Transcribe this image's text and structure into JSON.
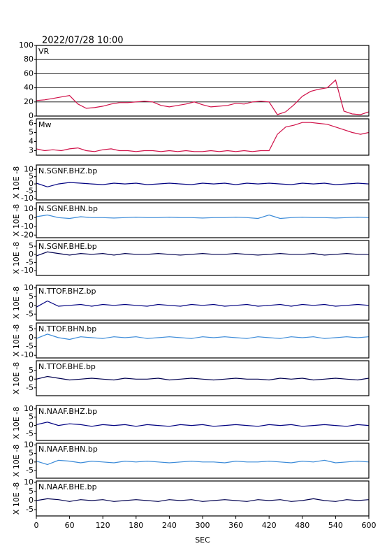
{
  "title": "2022/07/28 10:00",
  "chart_data": [
    {
      "type": "line",
      "label": "VR",
      "color": "#d01048",
      "grid": true,
      "xlim": [
        0,
        600
      ],
      "ylim": [
        0,
        100
      ],
      "yticks": [
        0,
        20,
        40,
        60,
        80,
        100
      ],
      "x": [
        0,
        15,
        30,
        45,
        60,
        75,
        90,
        105,
        120,
        135,
        150,
        165,
        180,
        195,
        210,
        225,
        240,
        255,
        270,
        285,
        300,
        315,
        330,
        345,
        360,
        375,
        390,
        405,
        420,
        435,
        450,
        465,
        480,
        495,
        510,
        525,
        540,
        555,
        570,
        585,
        600
      ],
      "values": [
        22,
        23,
        25,
        27,
        29,
        17,
        11,
        12,
        14,
        17,
        19,
        19,
        20,
        21,
        20,
        15,
        13,
        15,
        17,
        20,
        16,
        13,
        14,
        15,
        18,
        17,
        20,
        21,
        20,
        2,
        6,
        16,
        28,
        35,
        38,
        40,
        51,
        7,
        3,
        2,
        6
      ]
    },
    {
      "type": "line",
      "label": "Mw",
      "color": "#d01048",
      "grid": false,
      "xlim": [
        0,
        600
      ],
      "ylim": [
        2.5,
        6.5
      ],
      "yticks": [
        3,
        4,
        5,
        6
      ],
      "x": [
        0,
        15,
        30,
        45,
        60,
        75,
        90,
        105,
        120,
        135,
        150,
        165,
        180,
        195,
        210,
        225,
        240,
        255,
        270,
        285,
        300,
        315,
        330,
        345,
        360,
        375,
        390,
        405,
        420,
        435,
        450,
        465,
        480,
        495,
        510,
        525,
        540,
        555,
        570,
        585,
        600
      ],
      "values": [
        3.2,
        3.0,
        3.1,
        3.0,
        3.2,
        3.3,
        3.0,
        2.9,
        3.1,
        3.2,
        3.0,
        3.0,
        2.9,
        3.0,
        3.0,
        2.9,
        3.0,
        2.9,
        3.0,
        2.9,
        2.9,
        3.0,
        2.9,
        3.0,
        2.9,
        3.0,
        2.9,
        3.0,
        3.0,
        4.8,
        5.6,
        5.8,
        6.1,
        6.1,
        6.0,
        5.9,
        5.6,
        5.3,
        5.0,
        4.8,
        5.0
      ]
    },
    {
      "type": "line",
      "label": "N.SGNF.BHZ.bp",
      "ylabel": "X 10E -8",
      "color": "#000080",
      "xlim": [
        0,
        600
      ],
      "ylim": [
        -11,
        13
      ],
      "yticks": [
        10,
        5,
        0,
        -5,
        -10
      ],
      "x": [
        0,
        20,
        40,
        60,
        80,
        100,
        120,
        140,
        160,
        180,
        200,
        220,
        240,
        260,
        280,
        300,
        320,
        340,
        360,
        380,
        400,
        420,
        440,
        460,
        480,
        500,
        520,
        540,
        560,
        580,
        600
      ],
      "values": [
        0.5,
        -2,
        0,
        1,
        0.5,
        0,
        -0.5,
        0.5,
        0,
        0.5,
        -0.5,
        0,
        0.5,
        0,
        -0.5,
        0.5,
        0,
        0.5,
        -0.5,
        0.5,
        0,
        0.5,
        0,
        -0.5,
        0.5,
        0,
        0.5,
        -0.5,
        0,
        0.5,
        0
      ]
    },
    {
      "type": "line",
      "label": "N.SGNF.BHN.bp",
      "ylabel": "X 10E -8",
      "color": "#3a8ad8",
      "xlim": [
        0,
        600
      ],
      "ylim": [
        -23,
        17
      ],
      "yticks": [
        10,
        0,
        -10,
        -20
      ],
      "x": [
        0,
        20,
        40,
        60,
        80,
        100,
        120,
        140,
        160,
        180,
        200,
        220,
        240,
        260,
        280,
        300,
        320,
        340,
        360,
        380,
        400,
        420,
        440,
        460,
        480,
        500,
        520,
        540,
        560,
        580,
        600
      ],
      "values": [
        1,
        3,
        0,
        -1,
        1,
        0,
        0,
        -0.5,
        0,
        0.5,
        0,
        0,
        0.5,
        0,
        0,
        -0.5,
        0,
        0,
        0.5,
        0,
        -1,
        3,
        -1,
        0,
        0.5,
        0,
        0,
        -0.5,
        0,
        0.5,
        0
      ]
    },
    {
      "type": "line",
      "label": "N.SGNF.BHE.bp",
      "ylabel": "X 10E -8",
      "color": "#000050",
      "xlim": [
        0,
        600
      ],
      "ylim": [
        -13,
        8.5
      ],
      "yticks": [
        5,
        0,
        -5,
        -10
      ],
      "x": [
        0,
        20,
        40,
        60,
        80,
        100,
        120,
        140,
        160,
        180,
        200,
        220,
        240,
        260,
        280,
        300,
        320,
        340,
        360,
        380,
        400,
        420,
        440,
        460,
        480,
        500,
        520,
        540,
        560,
        580,
        600
      ],
      "values": [
        -1,
        1.5,
        0.5,
        -0.5,
        0.5,
        0,
        0.5,
        -0.5,
        0.5,
        0,
        0,
        0.5,
        0,
        -0.5,
        0,
        0.5,
        0,
        0,
        0.5,
        0,
        -0.5,
        0,
        0.5,
        0,
        0,
        0.5,
        -0.5,
        0,
        0.5,
        0,
        0
      ]
    },
    {
      "type": "line",
      "label": "N.TTOF.BHZ.bp",
      "ylabel": "X 10E -8",
      "color": "#000080",
      "xlim": [
        0,
        600
      ],
      "ylim": [
        -8.5,
        11.5
      ],
      "yticks": [
        10,
        5,
        0,
        -5
      ],
      "x": [
        0,
        20,
        40,
        60,
        80,
        100,
        120,
        140,
        160,
        180,
        200,
        220,
        240,
        260,
        280,
        300,
        320,
        340,
        360,
        380,
        400,
        420,
        440,
        460,
        480,
        500,
        520,
        540,
        560,
        580,
        600
      ],
      "values": [
        -1,
        2.5,
        -0.5,
        0,
        0.5,
        -0.5,
        0.5,
        0,
        0.5,
        0,
        -0.5,
        0.5,
        0,
        -0.5,
        0.5,
        0,
        0.5,
        -0.5,
        0,
        0.5,
        -0.5,
        0,
        0.5,
        -0.5,
        0.5,
        0,
        0.5,
        -0.5,
        0,
        0.5,
        0
      ]
    },
    {
      "type": "line",
      "label": "N.TTOF.BHN.bp",
      "ylabel": "X 10E -8",
      "color": "#3a8ad8",
      "xlim": [
        0,
        600
      ],
      "ylim": [
        -11.5,
        8.3
      ],
      "yticks": [
        5,
        0,
        -5,
        -10
      ],
      "x": [
        0,
        20,
        40,
        60,
        80,
        100,
        120,
        140,
        160,
        180,
        200,
        220,
        240,
        260,
        280,
        300,
        320,
        340,
        360,
        380,
        400,
        420,
        440,
        460,
        480,
        500,
        520,
        540,
        560,
        580,
        600
      ],
      "values": [
        -0.5,
        2,
        0,
        -1,
        0.5,
        0,
        -0.5,
        0.5,
        0,
        0.5,
        -0.5,
        0,
        0.5,
        0,
        -0.5,
        0.5,
        0,
        0.5,
        0,
        -0.5,
        0.5,
        0,
        -0.5,
        0.5,
        0,
        0.5,
        -0.5,
        0,
        0.5,
        0,
        0.5
      ]
    },
    {
      "type": "line",
      "label": "N.TTOF.BHE.bp",
      "ylabel": "X 10E -8",
      "color": "#000050",
      "xlim": [
        0,
        600
      ],
      "ylim": [
        -9.5,
        10.5
      ],
      "yticks": [
        5,
        0,
        -5
      ],
      "x": [
        0,
        20,
        40,
        60,
        80,
        100,
        120,
        140,
        160,
        180,
        200,
        220,
        240,
        260,
        280,
        300,
        320,
        340,
        360,
        380,
        400,
        420,
        440,
        460,
        480,
        500,
        520,
        540,
        560,
        580,
        600
      ],
      "values": [
        0,
        1.5,
        0.5,
        -0.5,
        0,
        0.5,
        0,
        -0.5,
        0.5,
        0,
        0,
        0.5,
        -0.5,
        0,
        0.5,
        0,
        -0.5,
        0,
        0.5,
        0,
        0,
        -0.5,
        0.5,
        0,
        0.5,
        -0.5,
        0,
        0.5,
        0,
        -0.5,
        0.5
      ]
    },
    {
      "type": "line",
      "label": "N.NAAF.BHZ.bp",
      "ylabel": "X 10E -8",
      "color": "#000080",
      "xlim": [
        0,
        600
      ],
      "ylim": [
        -9,
        12
      ],
      "yticks": [
        10,
        5,
        0,
        -5
      ],
      "x": [
        0,
        20,
        40,
        60,
        80,
        100,
        120,
        140,
        160,
        180,
        200,
        220,
        240,
        260,
        280,
        300,
        320,
        340,
        360,
        380,
        400,
        420,
        440,
        460,
        480,
        500,
        520,
        540,
        560,
        580,
        600
      ],
      "values": [
        0.5,
        2,
        0,
        1,
        0.5,
        -0.5,
        0.5,
        0,
        0.5,
        -0.5,
        0.5,
        0,
        -0.5,
        0.5,
        0,
        0.5,
        -0.5,
        0,
        0.5,
        0,
        -0.5,
        0.5,
        0,
        0.5,
        -0.5,
        0,
        0.5,
        0,
        -0.5,
        0.5,
        0
      ]
    },
    {
      "type": "line",
      "label": "N.NAAF.BHN.bp",
      "ylabel": "X 10E -8",
      "color": "#3a8ad8",
      "xlim": [
        0,
        600
      ],
      "ylim": [
        -9.5,
        11
      ],
      "yticks": [
        10,
        5,
        0,
        -5
      ],
      "x": [
        0,
        20,
        40,
        60,
        80,
        100,
        120,
        140,
        160,
        180,
        200,
        220,
        240,
        260,
        280,
        300,
        320,
        340,
        360,
        380,
        400,
        420,
        440,
        460,
        480,
        500,
        520,
        540,
        560,
        580,
        600
      ],
      "values": [
        0.5,
        -1.5,
        1,
        0.5,
        -0.5,
        0.5,
        0,
        -0.5,
        0.5,
        0,
        0.5,
        0,
        -0.5,
        0,
        0.5,
        0,
        0,
        -0.5,
        0.5,
        0,
        0,
        0.5,
        0,
        -0.5,
        0.5,
        0,
        1,
        -0.5,
        0,
        0.5,
        0
      ]
    },
    {
      "type": "line",
      "label": "N.NAAF.BHE.bp",
      "ylabel": "X 10E -8",
      "color": "#000050",
      "xlabel": "SEC",
      "xlim": [
        0,
        600
      ],
      "ylim": [
        -8.5,
        10.8
      ],
      "yticks": [
        10,
        5,
        0,
        -5
      ],
      "xticks": [
        0,
        60,
        120,
        180,
        240,
        300,
        360,
        420,
        480,
        540,
        600
      ],
      "x": [
        0,
        20,
        40,
        60,
        80,
        100,
        120,
        140,
        160,
        180,
        200,
        220,
        240,
        260,
        280,
        300,
        320,
        340,
        360,
        380,
        400,
        420,
        440,
        460,
        480,
        500,
        520,
        540,
        560,
        580,
        600
      ],
      "values": [
        0,
        1,
        0.5,
        -0.5,
        0.5,
        0,
        0.5,
        -0.5,
        0,
        0.5,
        0,
        -0.5,
        0.5,
        0,
        0.5,
        -0.5,
        0,
        0.5,
        0,
        -0.5,
        0.5,
        0,
        0.5,
        -0.5,
        0,
        1,
        0,
        -0.5,
        0.5,
        0,
        0.5
      ]
    }
  ]
}
